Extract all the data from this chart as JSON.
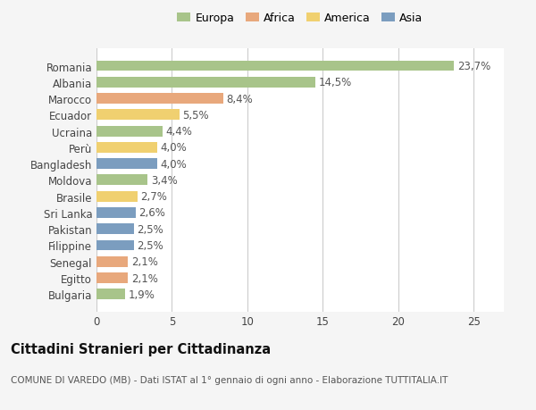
{
  "countries": [
    "Romania",
    "Albania",
    "Marocco",
    "Ecuador",
    "Ucraina",
    "Perù",
    "Bangladesh",
    "Moldova",
    "Brasile",
    "Sri Lanka",
    "Pakistan",
    "Filippine",
    "Senegal",
    "Egitto",
    "Bulgaria"
  ],
  "values": [
    23.7,
    14.5,
    8.4,
    5.5,
    4.4,
    4.0,
    4.0,
    3.4,
    2.7,
    2.6,
    2.5,
    2.5,
    2.1,
    2.1,
    1.9
  ],
  "labels": [
    "23,7%",
    "14,5%",
    "8,4%",
    "5,5%",
    "4,4%",
    "4,0%",
    "4,0%",
    "3,4%",
    "2,7%",
    "2,6%",
    "2,5%",
    "2,5%",
    "2,1%",
    "2,1%",
    "1,9%"
  ],
  "categories": [
    "Europa",
    "Europa",
    "Africa",
    "America",
    "Europa",
    "America",
    "Asia",
    "Europa",
    "America",
    "Asia",
    "Asia",
    "Asia",
    "Africa",
    "Africa",
    "Europa"
  ],
  "colors": {
    "Europa": "#a8c48a",
    "Africa": "#e8a87c",
    "America": "#f0d070",
    "Asia": "#7b9dbf"
  },
  "legend_order": [
    "Europa",
    "Africa",
    "America",
    "Asia"
  ],
  "title": "Cittadini Stranieri per Cittadinanza",
  "subtitle": "COMUNE DI VAREDO (MB) - Dati ISTAT al 1° gennaio di ogni anno - Elaborazione TUTTITALIA.IT",
  "xlim": [
    0,
    27
  ],
  "xticks": [
    0,
    5,
    10,
    15,
    20,
    25
  ],
  "background_color": "#f5f5f5",
  "plot_bg_color": "#ffffff",
  "grid_color": "#cccccc",
  "bar_height": 0.65,
  "label_fontsize": 8.5,
  "tick_fontsize": 8.5,
  "title_fontsize": 10.5,
  "subtitle_fontsize": 7.5,
  "legend_fontsize": 9
}
